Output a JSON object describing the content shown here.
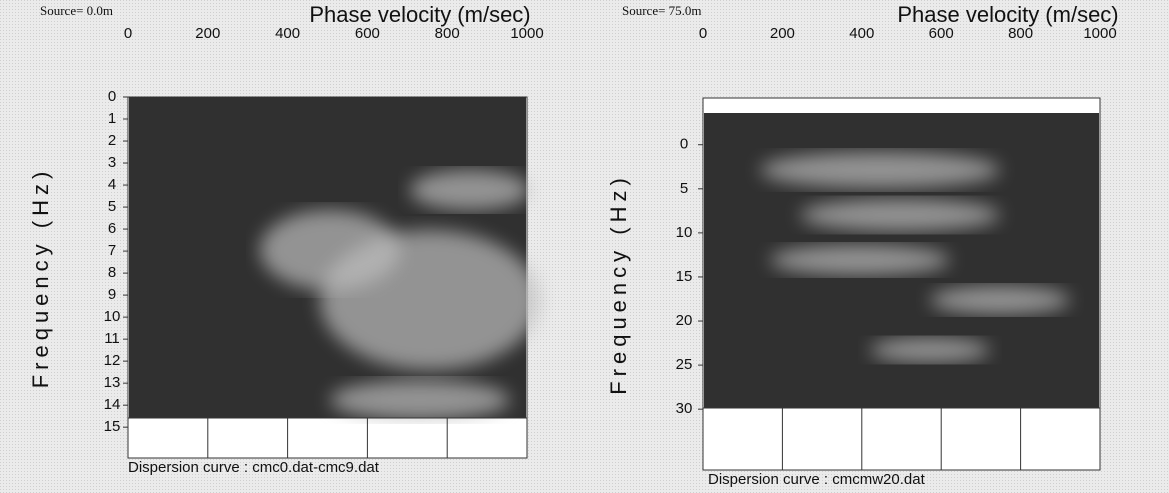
{
  "chart_data": [
    {
      "type": "dispersion-image",
      "source": "Source= 0.0m",
      "x_label": "Phase velocity (m/sec)",
      "y_label": "Frequency (Hz)",
      "caption": "Dispersion curve : cmc0.dat-cmc9.dat",
      "xlim": [
        0,
        1000
      ],
      "xticks": [
        0,
        200,
        400,
        600,
        800,
        1000
      ],
      "ylim": [
        0,
        16.4
      ],
      "yticks": [
        0,
        1,
        2,
        3,
        4,
        5,
        6,
        7,
        8,
        9,
        10,
        11,
        12,
        13,
        14,
        15
      ],
      "y_inverted": true
    },
    {
      "type": "dispersion-image",
      "source": "Source= 75.0m",
      "x_label": "Phase velocity (m/sec)",
      "y_label": "Frequency (Hz)",
      "caption": "Dispersion curve : cmcmw20.dat",
      "xlim": [
        0,
        1000
      ],
      "xticks": [
        0,
        200,
        400,
        600,
        800,
        1000
      ],
      "ylim": [
        -5.3,
        36.9
      ],
      "yticks": [
        0,
        5,
        10,
        15,
        20,
        25,
        30
      ],
      "y_inverted": true
    }
  ]
}
